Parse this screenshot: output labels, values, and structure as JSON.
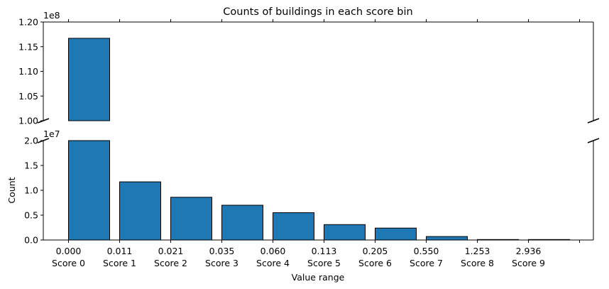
{
  "chart_data": {
    "type": "bar",
    "title": "Counts of buildings in each score bin",
    "xlabel": "Value range",
    "ylabel": "Count",
    "broken_axis": true,
    "categories": [
      "Score 0",
      "Score 1",
      "Score 2",
      "Score 3",
      "Score 4",
      "Score 5",
      "Score 6",
      "Score 7",
      "Score 8",
      "Score 9"
    ],
    "bin_edges": [
      "0.000",
      "0.011",
      "0.021",
      "0.035",
      "0.060",
      "0.113",
      "0.205",
      "0.550",
      "1.253",
      "2.936"
    ],
    "values": [
      116700000,
      11700000,
      8600000,
      7000000,
      5500000,
      3100000,
      2400000,
      700000,
      100000,
      100000
    ],
    "bar_color": "#1f77b4",
    "edge_color": "#000000",
    "upper_axis": {
      "ylim": [
        100000000,
        120000000
      ],
      "ticks": [
        100000000,
        105000000,
        110000000,
        115000000,
        120000000
      ],
      "tick_labels": [
        "1.00",
        "1.05",
        "1.10",
        "1.15",
        "1.20"
      ],
      "offset_label": "1e8"
    },
    "lower_axis": {
      "ylim": [
        0,
        20000000
      ],
      "ticks": [
        0,
        5000000,
        10000000,
        15000000,
        20000000
      ],
      "tick_labels": [
        "0.0",
        "0.5",
        "1.0",
        "1.5",
        "2.0"
      ],
      "offset_label": "1e7"
    }
  }
}
